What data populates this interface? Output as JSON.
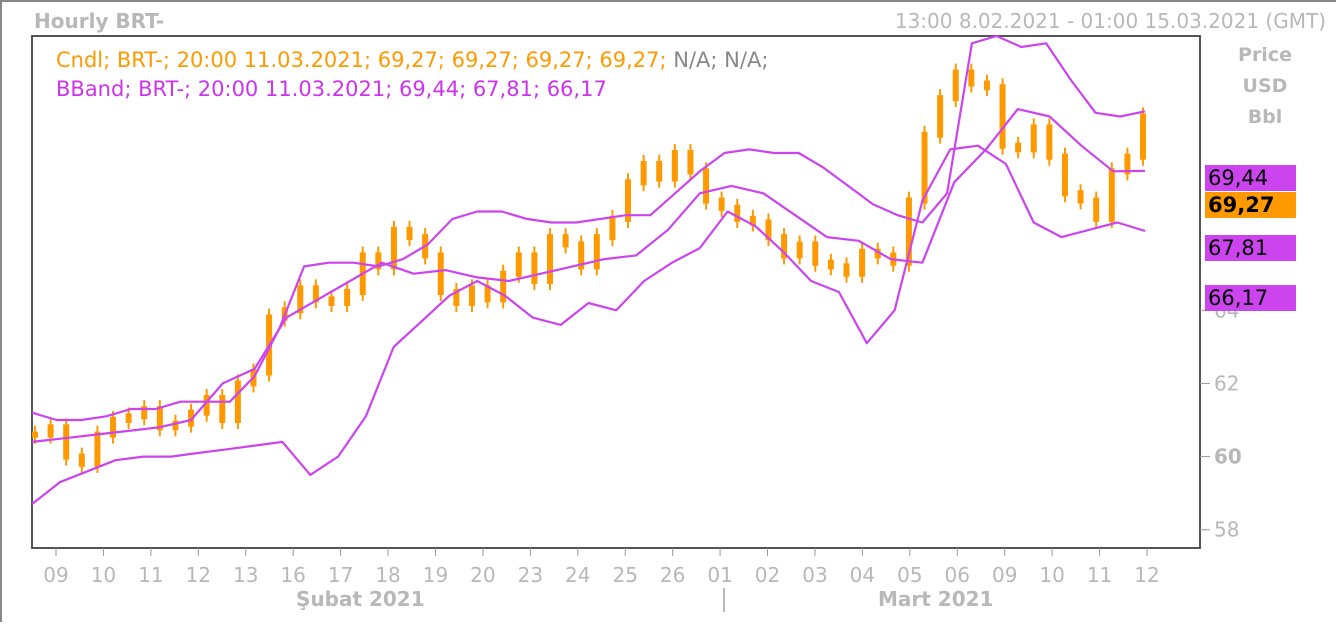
{
  "header": {
    "title": "Hourly BRT-",
    "range": "13:00 8.02.2021 - 01:00 15.03.2021 (GMT)"
  },
  "legend": {
    "cndl_text": "Cndl; BRT-; 20:00 11.03.2021; 69,27; 69,27; 69,27; 69,27;",
    "cndl_na": "N/A; N/A;",
    "bband_text": "BBand; BRT-; 20:00 11.03.2021; 69,44; 67,81; 66,17"
  },
  "axis_units": [
    "Price",
    "USD",
    "Bbl"
  ],
  "price_tags": {
    "upper": "69,44",
    "last": "69,27",
    "mid": "67,81",
    "lower": "66,17"
  },
  "months": {
    "feb": "Şubat 2021",
    "mar": "Mart 2021"
  },
  "colors": {
    "candle": "#ff9900",
    "band": "#cc44ee",
    "axis_text": "#b8b8b8",
    "frame": "#555555"
  },
  "chart_data": {
    "type": "line",
    "title": "Hourly BRT-",
    "ylim": [
      57.5,
      71.5
    ],
    "y_ticks": [
      58,
      60,
      62,
      64
    ],
    "x_ticks": [
      "09",
      "10",
      "11",
      "12",
      "13",
      "16",
      "17",
      "18",
      "19",
      "20",
      "23",
      "24",
      "25",
      "26",
      "01",
      "02",
      "03",
      "04",
      "05",
      "06",
      "09",
      "10",
      "11",
      "12"
    ],
    "series": [
      {
        "name": "Cndl",
        "type": "candlestick-approx",
        "values": [
          60.6,
          60.8,
          60.0,
          59.8,
          60.6,
          61.0,
          61.1,
          61.3,
          60.8,
          60.9,
          61.2,
          61.6,
          61.0,
          62.0,
          62.3,
          63.8,
          64.0,
          64.6,
          64.3,
          64.2,
          64.5,
          65.5,
          65.2,
          66.2,
          66.0,
          65.5,
          64.5,
          64.2,
          64.6,
          64.3,
          65.0,
          65.5,
          64.8,
          66.0,
          65.8,
          65.2,
          66.0,
          66.5,
          67.5,
          68.0,
          67.6,
          68.3,
          67.8,
          67.0,
          66.8,
          66.5,
          66.4,
          66.0,
          65.5,
          65.8,
          65.3,
          65.2,
          65.0,
          65.6,
          65.5,
          65.3,
          67.0,
          68.8,
          69.8,
          70.5,
          70.2,
          70.1,
          68.5,
          68.4,
          69.0,
          68.2,
          67.2,
          67.0,
          66.5,
          67.8,
          68.2,
          69.3
        ]
      },
      {
        "name": "BBand",
        "type": "upper",
        "values": [
          61.2,
          61.0,
          61.0,
          61.1,
          61.3,
          61.3,
          61.5,
          61.5,
          61.5,
          62.2,
          63.5,
          65.2,
          65.3,
          65.3,
          65.2,
          65.4,
          65.8,
          66.5,
          66.7,
          66.7,
          66.5,
          66.4,
          66.4,
          66.5,
          66.6,
          66.6,
          67.2,
          67.8,
          68.3,
          68.4,
          68.3,
          68.3,
          67.9,
          67.4,
          66.9,
          66.6,
          66.4,
          67.2,
          71.3,
          71.5,
          71.2,
          71.3,
          70.3,
          69.4,
          69.3,
          69.44
        ]
      },
      {
        "name": "BBand",
        "type": "middle",
        "values": [
          60.4,
          60.5,
          60.6,
          60.7,
          60.8,
          61.0,
          62.0,
          62.4,
          63.8,
          64.3,
          64.8,
          65.3,
          65.0,
          65.1,
          64.9,
          64.8,
          65.0,
          65.2,
          65.4,
          65.5,
          66.2,
          67.2,
          67.4,
          67.2,
          66.6,
          66.0,
          65.9,
          65.4,
          65.3,
          67.5,
          68.4,
          69.5,
          69.3,
          68.5,
          67.8,
          67.81
        ]
      },
      {
        "name": "BBand",
        "type": "lower",
        "values": [
          58.7,
          59.3,
          59.6,
          59.9,
          60.0,
          60.0,
          60.1,
          60.2,
          60.3,
          60.4,
          59.5,
          60.0,
          61.1,
          63.0,
          63.7,
          64.4,
          64.8,
          64.4,
          63.8,
          63.6,
          64.2,
          64.0,
          64.8,
          65.3,
          65.7,
          66.7,
          66.3,
          65.6,
          64.8,
          64.5,
          63.1,
          64.0,
          67.0,
          68.4,
          68.5,
          68.0,
          66.4,
          66.0,
          66.2,
          66.4,
          66.17
        ]
      }
    ]
  }
}
